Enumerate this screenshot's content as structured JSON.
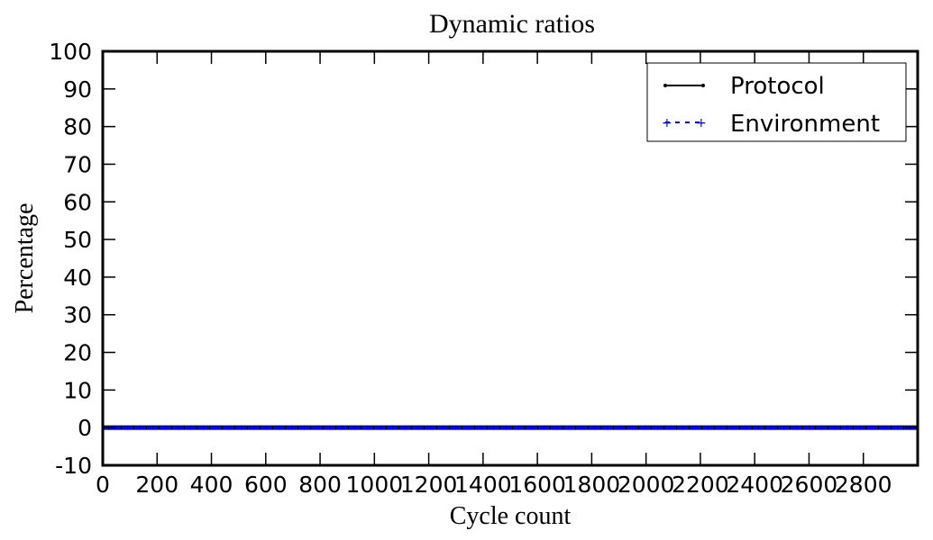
{
  "chart_data": {
    "type": "line",
    "title": "Dynamic ratios",
    "xlabel": "Cycle count",
    "ylabel": "Percentage",
    "xlim": [
      0,
      3000
    ],
    "ylim": [
      -10,
      100
    ],
    "x_ticks": [
      0,
      200,
      400,
      600,
      800,
      1000,
      1200,
      1400,
      1600,
      1800,
      2000,
      2200,
      2400,
      2600,
      2800
    ],
    "y_ticks": [
      -10,
      0,
      10,
      20,
      30,
      40,
      50,
      60,
      70,
      80,
      90,
      100
    ],
    "grid": false,
    "legend": {
      "position": "top-right"
    },
    "series": [
      {
        "name": "Protocol",
        "color": "#000000",
        "style": "solid",
        "x": [
          0,
          3000
        ],
        "y": [
          0,
          0
        ]
      },
      {
        "name": "Environment",
        "color": "#0000ff",
        "style": "dashed",
        "x": [
          0,
          3000
        ],
        "y": [
          0,
          0
        ]
      }
    ]
  }
}
